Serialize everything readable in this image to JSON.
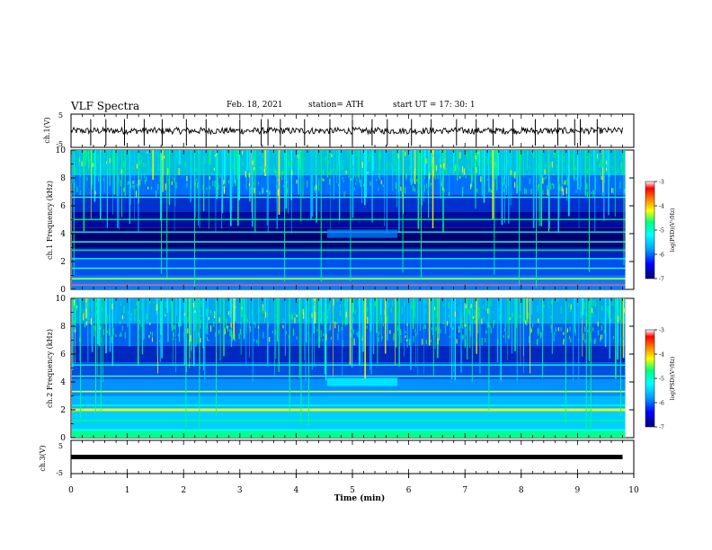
{
  "header": {
    "title": "VLF Spectra",
    "date": "Feb. 18, 2021",
    "station": "station= ATH",
    "start": "start  UT =   17: 30: 1"
  },
  "chart_data": [
    {
      "type": "line",
      "panel": "ch1-waveform",
      "ylabel": "ch.1(V)",
      "ylim": [
        -5,
        5
      ],
      "y_ticks": [
        "5",
        "-5"
      ],
      "xlim": [
        0,
        10
      ],
      "baseline": 0,
      "noise_amplitude": 1,
      "spike_times_min": [
        0.35,
        0.62,
        0.95,
        1.3,
        1.62,
        2.05,
        2.4,
        3.0,
        3.38,
        3.5,
        3.72,
        4.15,
        4.6,
        5.0,
        5.35,
        5.62,
        6.05,
        6.4,
        6.85,
        7.2,
        7.5,
        7.85,
        8.25,
        8.65,
        8.95,
        9.05,
        9.35
      ]
    },
    {
      "type": "heatmap",
      "panel": "ch1-spectrogram",
      "ylabel": "ch.1 Frequency (kHz)",
      "ylim": [
        0,
        10
      ],
      "y_ticks": [
        "0",
        "2",
        "4",
        "6",
        "8",
        "10"
      ],
      "xlim": [
        0,
        9.85
      ],
      "colorbar": {
        "label": "log(PSD)(V²/Hz)",
        "range": [
          -7,
          -3
        ],
        "ticks": [
          "-3",
          "-4",
          "-5",
          "-6",
          "-7"
        ]
      },
      "bands_khz": [
        0.3,
        0.75,
        1.5,
        2.2,
        2.8,
        3.4,
        4.1,
        5.0,
        6.6
      ]
    },
    {
      "type": "heatmap",
      "panel": "ch2-spectrogram",
      "ylabel": "ch.2 Frequency (kHz)",
      "ylim": [
        0,
        10
      ],
      "y_ticks": [
        "0",
        "2",
        "4",
        "6",
        "8",
        "10"
      ],
      "xlim": [
        0,
        9.85
      ],
      "colorbar": {
        "label": "log(PSD)(V²/Hz)",
        "range": [
          -7,
          -3
        ],
        "ticks": [
          "-3",
          "-4",
          "-5",
          "-6",
          "-7"
        ]
      },
      "bands_khz": [
        0.5,
        1.2,
        2.0,
        2.3,
        3.3,
        4.4,
        5.2
      ]
    },
    {
      "type": "line",
      "panel": "ch3-waveform",
      "ylabel": "ch.3(V)",
      "ylim": [
        -5,
        5
      ],
      "y_ticks": [
        "5",
        "-5"
      ],
      "xlim": [
        0,
        10
      ],
      "baseline": 0,
      "xlabel": "Time  (min)",
      "x_ticks": [
        "0",
        "1",
        "2",
        "3",
        "4",
        "5",
        "6",
        "7",
        "8",
        "9",
        "10"
      ]
    }
  ],
  "colors": {
    "cmap": [
      "#00007a",
      "#0000ff",
      "#00a0ff",
      "#00ffff",
      "#00ff80",
      "#ffff00",
      "#ff8000",
      "#ff0000",
      "#ffffff"
    ],
    "axis": "#000000"
  }
}
